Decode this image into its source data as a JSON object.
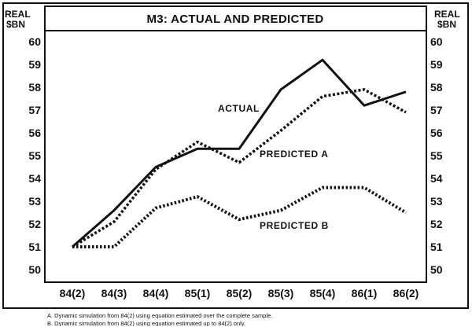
{
  "chart_data": {
    "type": "line",
    "title": "M3: ACTUAL AND PREDICTED",
    "ylabel_left": [
      "REAL",
      "$BN"
    ],
    "ylabel_right": [
      "REAL",
      "$BN"
    ],
    "categories": [
      "84(2)",
      "84(3)",
      "84(4)",
      "85(1)",
      "85(2)",
      "85(3)",
      "85(4)",
      "86(1)",
      "86(2)"
    ],
    "ylim": [
      50,
      60
    ],
    "yticks": [
      "50",
      "51",
      "52",
      "53",
      "54",
      "55",
      "56",
      "57",
      "58",
      "59",
      "60"
    ],
    "series": [
      {
        "name": "ACTUAL",
        "style": "solid",
        "color": "#111111",
        "values": [
          51.0,
          52.6,
          54.5,
          55.3,
          55.3,
          57.9,
          59.2,
          57.2,
          57.8
        ]
      },
      {
        "name": "PREDICTED A",
        "style": "dashed",
        "color": "#111111",
        "values": [
          51.0,
          52.1,
          54.4,
          55.6,
          54.7,
          56.1,
          57.6,
          57.9,
          56.9
        ]
      },
      {
        "name": "PREDICTED B",
        "style": "dotted",
        "color": "#111111",
        "values": [
          51.0,
          51.0,
          52.7,
          53.2,
          52.2,
          52.6,
          53.6,
          53.6,
          52.5
        ]
      }
    ],
    "annotations": [
      "ACTUAL",
      "PREDICTED A",
      "PREDICTED B"
    ],
    "grid": false,
    "legend": "none"
  },
  "footnotes": [
    "A. Dynamic simulation from 84(2) using equation estimated over the complete sample.",
    "B. Dynamic simulation from 84(2) using equation estimated up to 84(2) only."
  ]
}
